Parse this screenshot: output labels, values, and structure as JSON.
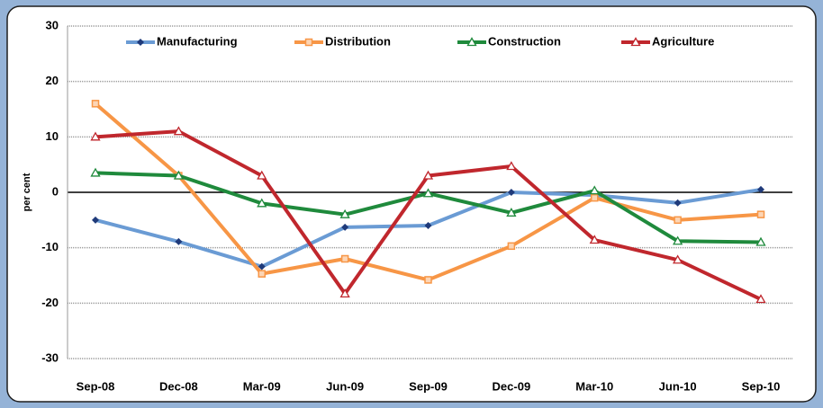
{
  "chart_data": {
    "type": "line",
    "y_label": "per cent",
    "categories": [
      "Sep-08",
      "Dec-08",
      "Mar-09",
      "Jun-09",
      "Sep-09",
      "Dec-09",
      "Mar-10",
      "Jun-10",
      "Sep-10"
    ],
    "series": [
      {
        "name": "Manufacturing",
        "color": "#6a9bd4",
        "marker": "diamond",
        "marker_color": "#1f3a7a",
        "values": [
          -5,
          -8.9,
          -13.4,
          -6.3,
          -6,
          0,
          -0.5,
          -1.9,
          0.5
        ]
      },
      {
        "name": "Distribution",
        "color": "#f79646",
        "marker": "square",
        "marker_color": "#f79646",
        "values": [
          16,
          3,
          -14.7,
          -12,
          -15.8,
          -9.7,
          -1,
          -5,
          -4
        ]
      },
      {
        "name": "Construction",
        "color": "#1f8a3c",
        "marker": "triangle",
        "marker_color": "#1f8a3c",
        "values": [
          3.5,
          3,
          -2,
          -4,
          -0.2,
          -3.7,
          0.3,
          -8.8,
          -9
        ]
      },
      {
        "name": "Agriculture",
        "color": "#c0272d",
        "marker": "triangle",
        "marker_color": "#c0272d",
        "values": [
          10,
          11,
          3,
          -18.3,
          3,
          4.7,
          -8.6,
          -12.2,
          -19.3
        ]
      }
    ],
    "ylim": [
      -30,
      30
    ],
    "yticks": [
      -30,
      -20,
      -10,
      0,
      10,
      20,
      30
    ],
    "grid": true,
    "legend": "top"
  }
}
